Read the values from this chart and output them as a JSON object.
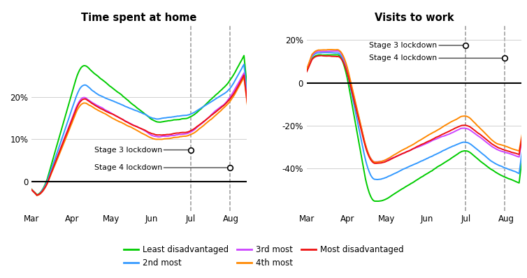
{
  "title_left": "Time spent at home",
  "title_right": "Visits to work",
  "colors": {
    "least": "#00cc00",
    "second": "#3399ff",
    "third": "#cc44ff",
    "fourth": "#ff8800",
    "most": "#ee1111"
  },
  "legend_labels": [
    "Least disadvantaged",
    "2nd most",
    "3rd most",
    "4th most",
    "Most disadvantaged"
  ],
  "vline1_label": "Stage 3 lockdown",
  "vline2_label": "Stage 4 lockdown",
  "stage3_day": 122,
  "stage4_day": 152,
  "month_ticks": [
    0,
    31,
    61,
    92,
    122,
    153
  ],
  "month_labels": [
    "Mar",
    "Apr",
    "May",
    "Jun",
    "Jul",
    "Aug"
  ],
  "xlim": [
    0,
    165
  ],
  "home_ylim": [
    -0.07,
    0.37
  ],
  "home_yticks": [
    0.0,
    0.1,
    0.2
  ],
  "home_ytick_labels": [
    "0",
    "10%",
    "20%"
  ],
  "work_ylim": [
    -0.6,
    0.27
  ],
  "work_yticks": [
    -0.4,
    -0.2,
    0.0,
    0.2
  ],
  "work_ytick_labels": [
    "-40%",
    "-20%",
    "0",
    "20%"
  ],
  "n_days": 168
}
